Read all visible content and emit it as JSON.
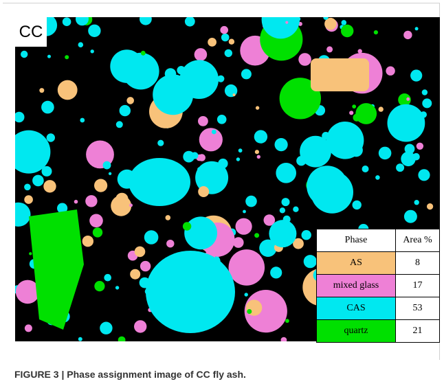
{
  "label": "CC",
  "table": {
    "header": [
      "Phase",
      "Area %"
    ],
    "rows": [
      [
        "AS",
        8
      ],
      [
        "mixed glass",
        17
      ],
      [
        "CAS",
        53
      ],
      [
        "quartz",
        21
      ]
    ]
  },
  "caption": "FIGURE 3 | Phase assignment image of CC fly ash."
}
